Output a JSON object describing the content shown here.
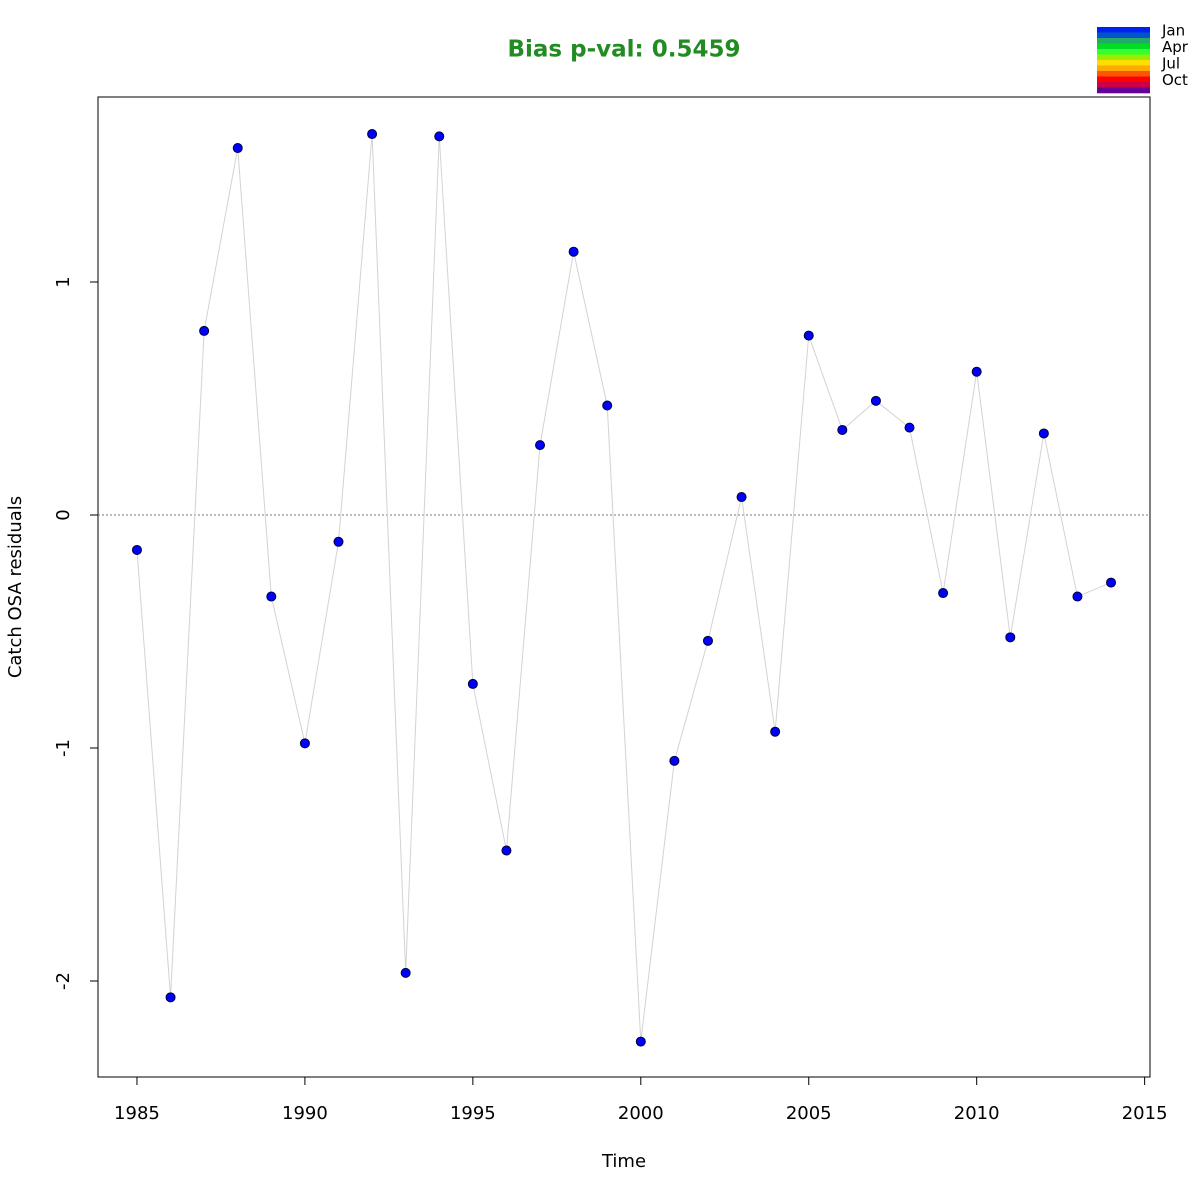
{
  "chart_data": {
    "type": "line",
    "title": "Bias p-val: 0.5459",
    "title_color": "#228b22",
    "x_label": "Time",
    "y_label": "Catch OSA residuals",
    "x": [
      1985,
      1986,
      1987,
      1988,
      1989,
      1990,
      1991,
      1992,
      1993,
      1994,
      1995,
      1996,
      1997,
      1998,
      1999,
      2000,
      2001,
      2002,
      2003,
      2004,
      2005,
      2006,
      2007,
      2008,
      2009,
      2010,
      2011,
      2012,
      2013,
      2014
    ],
    "values": [
      -0.15,
      -2.07,
      0.79,
      1.575,
      -0.35,
      -0.98,
      -0.115,
      1.635,
      -1.965,
      1.625,
      -0.725,
      -1.44,
      0.3,
      1.13,
      0.47,
      -2.26,
      -1.055,
      -0.54,
      0.077,
      -0.93,
      0.77,
      0.365,
      0.49,
      0.375,
      -0.335,
      0.615,
      -0.525,
      0.35,
      -0.35,
      -0.29
    ],
    "color": "#0000ff",
    "line_color": "#d3d3d3",
    "reference_line": 0,
    "xlim": [
      1983.84,
      2015.16
    ],
    "ylim": [
      -2.412,
      1.794
    ],
    "xticks": [
      1985,
      1990,
      1995,
      2000,
      2005,
      2010,
      2015
    ],
    "yticks": [
      -2,
      -1,
      0,
      1
    ],
    "legend": {
      "labels": [
        "Jan",
        "Apr",
        "Jul",
        "Oct"
      ],
      "colors": [
        "#0022ee",
        "#0055cc",
        "#22aa66",
        "#00dd22",
        "#33ff33",
        "#99ee00",
        "#ffdd00",
        "#ffaa00",
        "#ff5500",
        "#ff0000",
        "#cc0044",
        "#660099"
      ]
    }
  }
}
